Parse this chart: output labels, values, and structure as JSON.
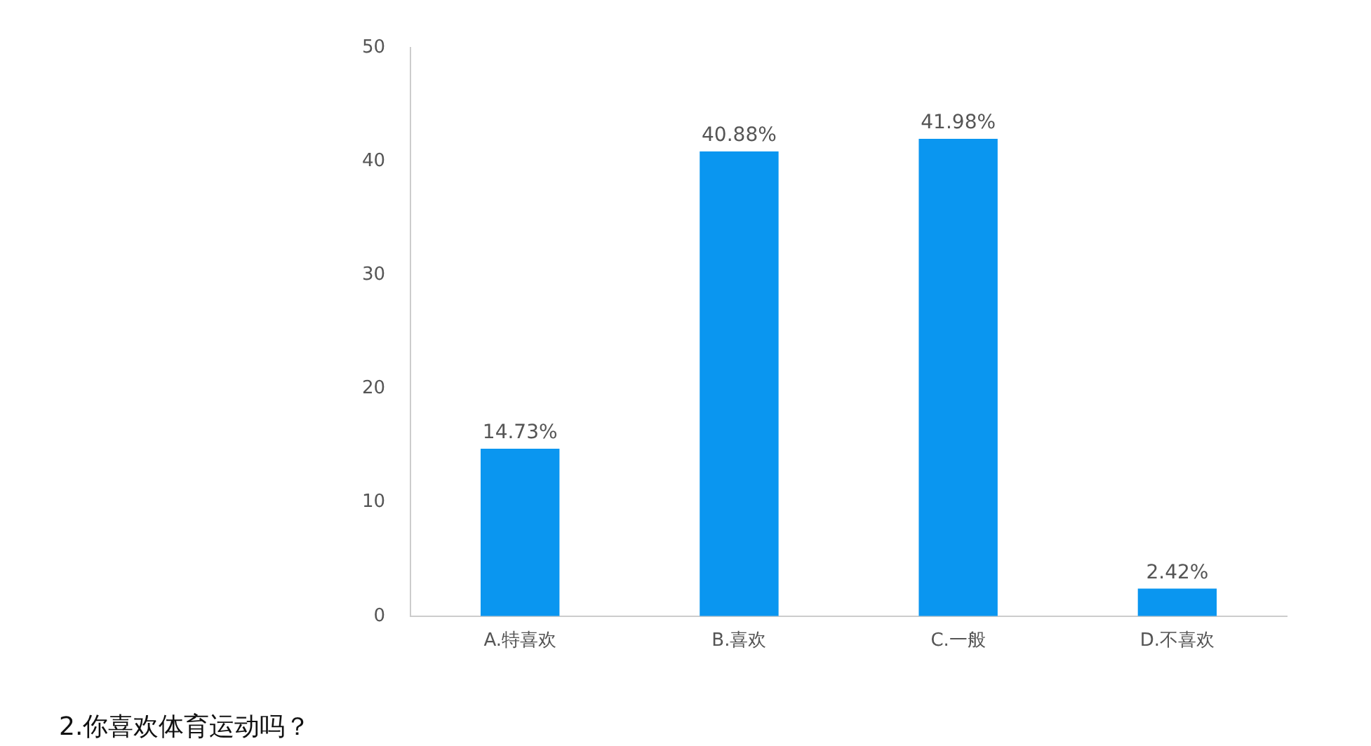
{
  "chart_data": {
    "type": "bar",
    "title": "2.你喜欢体育运动吗？",
    "categories": [
      "A.特喜欢",
      "B.喜欢",
      "C.一般",
      "D.不喜欢"
    ],
    "values": [
      14.73,
      40.88,
      41.98,
      2.42
    ],
    "value_labels": [
      "14.73%",
      "40.88%",
      "41.98%",
      "2.42%"
    ],
    "color": "#0a96f0",
    "ylim": [
      0,
      50
    ],
    "yticks": [
      0,
      10,
      20,
      30,
      40,
      50
    ],
    "grid": false,
    "legend": false
  }
}
